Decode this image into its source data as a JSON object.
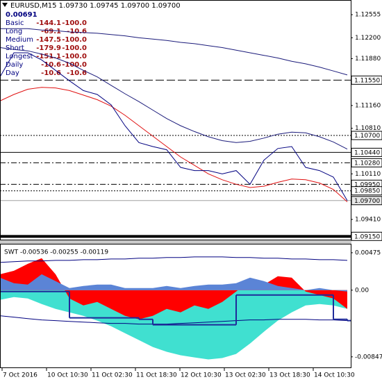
{
  "chart_data": [
    {
      "type": "line",
      "title": "EURUSD,M15 1.09730 1.09745 1.09700 1.09700",
      "subtitle": "0.00691",
      "table": [
        [
          "Basic",
          "-144.1",
          "-100.0"
        ],
        [
          "Long",
          "-69.1",
          "-10.6"
        ],
        [
          "Medium",
          "-147.5",
          "-100.0"
        ],
        [
          "Short",
          "-179.9",
          "-100.0"
        ],
        [
          "Longest",
          "-151.1",
          "-100.0"
        ],
        [
          "Daily",
          "-10.6",
          "-100.0"
        ],
        [
          "Day",
          "-10.6",
          "-10.6"
        ]
      ],
      "xlim": [
        0,
        505
      ],
      "xticks": [
        {
          "value": 3,
          "label": "7 Oct 2016"
        },
        {
          "value": 67,
          "label": "10 Oct 10:30"
        },
        {
          "value": 131,
          "label": "11 Oct 02:30"
        },
        {
          "value": 195,
          "label": "11 Oct 18:30"
        },
        {
          "value": 259,
          "label": "12 Oct 10:30"
        },
        {
          "value": 323,
          "label": "13 Oct 02:30"
        },
        {
          "value": 387,
          "label": "13 Oct 18:30"
        },
        {
          "value": 451,
          "label": "14 Oct 10:30"
        }
      ],
      "ylim": [
        1.091,
        1.1277
      ],
      "yticks": [
        1.12555,
        {
          "value": 1.122,
          "label": "1.12200"
        },
        {
          "value": 1.1188,
          "label": "1.11880"
        },
        {
          "value": 1.1116,
          "label": "1.11160"
        },
        {
          "value": 1.1081,
          "label": "1.10810"
        },
        {
          "value": 1.1011,
          "label": "1.10110"
        },
        {
          "value": 1.0941,
          "label": "1.09410"
        }
      ],
      "grid": false,
      "levels": [
        {
          "value": 1.1155,
          "label": "1.11550",
          "style": "dashed"
        },
        {
          "value": 1.107,
          "label": "1.10700",
          "style": "dotted"
        },
        {
          "value": 1.1044,
          "label": "1.10440",
          "style": "solid"
        },
        {
          "value": 1.1028,
          "label": "1.10280",
          "style": "dashdot"
        },
        {
          "value": 1.0995,
          "label": "1.09950",
          "style": "dashdot"
        },
        {
          "value": 1.0985,
          "label": "1.09850",
          "style": "dotted"
        },
        {
          "value": 1.097,
          "label": "1.09700",
          "style": "current"
        },
        {
          "value": 1.0915,
          "label": "1.09150",
          "style": "thick"
        }
      ],
      "x": [
        0,
        20,
        40,
        60,
        80,
        100,
        120,
        140,
        160,
        180,
        200,
        220,
        240,
        260,
        280,
        300,
        320,
        340,
        360,
        380,
        400,
        420,
        440,
        460,
        480,
        500
      ],
      "series": [
        {
          "color": "#1a1a7a",
          "kind": "line",
          "values": [
            1.1234,
            1.1234,
            1.1234,
            1.1232,
            1.1231,
            1.1229,
            1.1228,
            1.1227,
            1.1225,
            1.1223,
            1.122,
            1.1218,
            1.1216,
            1.1213,
            1.1211,
            1.1208,
            1.1205,
            1.1201,
            1.1197,
            1.1193,
            1.1189,
            1.1184,
            1.118,
            1.1175,
            1.1169,
            1.1163
          ]
        },
        {
          "color": "#1a1a7a",
          "kind": "line",
          "values": [
            1.1205,
            1.1202,
            1.12,
            1.1195,
            1.1189,
            1.1181,
            1.117,
            1.116,
            1.1147,
            1.1134,
            1.1122,
            1.1109,
            1.1096,
            1.1085,
            1.1076,
            1.1068,
            1.1062,
            1.1059,
            1.1061,
            1.1066,
            1.1072,
            1.1075,
            1.1074,
            1.1068,
            1.106,
            1.1049
          ]
        },
        {
          "color": "#e01010",
          "kind": "line",
          "values": [
            1.1123,
            1.1133,
            1.1141,
            1.1144,
            1.1143,
            1.1139,
            1.1132,
            1.1125,
            1.1115,
            1.1101,
            1.1085,
            1.1069,
            1.1053,
            1.1037,
            1.1024,
            1.1011,
            1.1002,
            1.0995,
            1.099,
            1.0992,
            1.0998,
            1.1003,
            1.1002,
            1.0997,
            1.0987,
            1.0968
          ]
        },
        {
          "color": "#000080",
          "kind": "line",
          "values": [
            1.116,
            1.1197,
            1.1197,
            1.1186,
            1.117,
            1.1154,
            1.1139,
            1.1133,
            1.1117,
            1.1085,
            1.1059,
            1.1053,
            1.1048,
            1.1021,
            1.1016,
            1.1016,
            1.1011,
            1.1016,
            1.0995,
            1.1032,
            1.105,
            1.1053,
            1.1021,
            1.1016,
            1.1006,
            1.097
          ]
        }
      ]
    },
    {
      "type": "line",
      "title": "SWT -0.00536 -0.00255 -0.00119",
      "xlim": [
        0,
        505
      ],
      "ylim": [
        -0.0099,
        0.0058
      ],
      "yticks": [
        0.00475,
        {
          "value": 0,
          "label": "0.00"
        },
        -0.00847
      ],
      "x": [
        0,
        20,
        40,
        60,
        80,
        100,
        120,
        140,
        160,
        180,
        200,
        220,
        240,
        260,
        280,
        300,
        320,
        340,
        360,
        380,
        400,
        420,
        440,
        460,
        480,
        500
      ],
      "series": [
        {
          "color": "#40e0d0",
          "kind": "area",
          "values": [
            -0.00123,
            -0.00088,
            -0.00106,
            -0.00176,
            -0.00238,
            -0.00282,
            -0.00326,
            -0.00387,
            -0.00458,
            -0.00546,
            -0.00634,
            -0.00722,
            -0.00783,
            -0.00827,
            -0.00854,
            -0.0088,
            -0.00862,
            -0.0081,
            -0.00678,
            -0.00528,
            -0.00387,
            -0.00282,
            -0.00194,
            -0.00176,
            -0.00194,
            -0.00238
          ]
        },
        {
          "color": "#ff0000",
          "kind": "area",
          "values": [
            0.00202,
            0.00246,
            0.00334,
            0.00405,
            0.00202,
            -0.00106,
            -0.00194,
            -0.0015,
            -0.00238,
            -0.00326,
            -0.0037,
            -0.00326,
            -0.00238,
            -0.00282,
            -0.00194,
            -0.00238,
            -0.0015,
            -0.00018,
            0.00114,
            0.0007,
            0.00176,
            0.00158,
            -0.00018,
            -0.00062,
            -0.00106,
            -0.00238
          ]
        },
        {
          "color": "#5b84d6",
          "kind": "area",
          "values": [
            0.00158,
            0.00088,
            0.0007,
            0.00202,
            0.00114,
            0.00026,
            0.00053,
            0.0007,
            0.0007,
            0.00026,
            0.00026,
            0.00026,
            0.00053,
            0.00026,
            0.00053,
            0.0007,
            0.0007,
            0.00088,
            0.00158,
            0.00114,
            0.00053,
            0.00026,
            0,
            0.00026,
            0,
            -0.00018
          ]
        },
        {
          "color": "#000080",
          "kind": "line",
          "values": [
            0.00352,
            0.00361,
            0.0037,
            0.0037,
            0.00378,
            0.00378,
            0.00387,
            0.00387,
            0.00396,
            0.00396,
            0.00405,
            0.00405,
            0.00414,
            0.00414,
            0.00422,
            0.00422,
            0.00422,
            0.00414,
            0.00414,
            0.00405,
            0.00405,
            0.00396,
            0.00396,
            0.00387,
            0.00387,
            0.00378
          ]
        },
        {
          "color": "#000080",
          "kind": "line",
          "values": [
            -0.00326,
            -0.00343,
            -0.00361,
            -0.00378,
            -0.00387,
            -0.00396,
            -0.00405,
            -0.00414,
            -0.00422,
            -0.00422,
            -0.00431,
            -0.00431,
            -0.00431,
            -0.00422,
            -0.00414,
            -0.00405,
            -0.00396,
            -0.00387,
            -0.00378,
            -0.00378,
            -0.0037,
            -0.0037,
            -0.0037,
            -0.00378,
            -0.00378,
            -0.00387
          ]
        },
        {
          "color": "#1f2a9a",
          "kind": "step",
          "values": [
            -0.00018,
            -0.00018,
            -0.00018,
            -0.00018,
            -0.00018,
            -0.00352,
            -0.00352,
            -0.00352,
            -0.00352,
            -0.00352,
            -0.0037,
            -0.0044,
            -0.0044,
            -0.0044,
            -0.0044,
            -0.0044,
            -0.0044,
            -0.00062,
            -0.00062,
            -0.00062,
            -0.00062,
            -0.00062,
            -0.00062,
            -0.00062,
            -0.0037,
            -0.00387
          ]
        }
      ]
    }
  ]
}
